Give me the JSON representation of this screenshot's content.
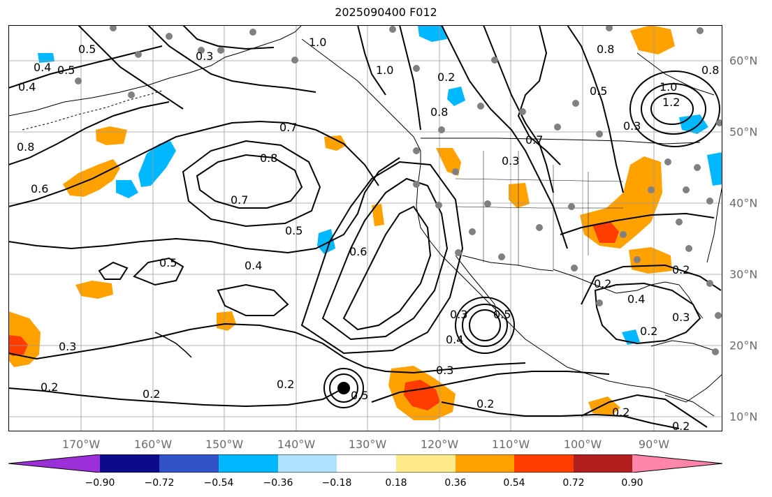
{
  "title": "2025090400 F012",
  "lon_labels": [
    "170°W",
    "160°W",
    "150°W",
    "140°W",
    "130°W",
    "120°W",
    "110°W",
    "100°W",
    "90°W"
  ],
  "lat_labels": [
    "60°N",
    "50°N",
    "40°N",
    "30°N",
    "20°N",
    "10°N"
  ],
  "colorbar": {
    "colors": [
      "#9b30d9",
      "#0b0a88",
      "#3054c8",
      "#00b8ff",
      "#aee2ff",
      "#ffffff",
      "#ffea8a",
      "#ffa200",
      "#ff3d00",
      "#b01e1e",
      "#ff86a8"
    ],
    "tick_labels": [
      "−0.90",
      "−0.72",
      "−0.54",
      "−0.36",
      "−0.18",
      "0.18",
      "0.36",
      "0.54",
      "0.72",
      "0.90"
    ]
  },
  "contour_labels": [
    "0.5",
    "0.4",
    "0.4",
    "0.8",
    "0.6",
    "0.3",
    "0.2",
    "0.2",
    "0.5",
    "0.4",
    "0.5",
    "0.7",
    "0.8",
    "0.6",
    "0.5",
    "0.3",
    "0.2",
    "0.2",
    "0.5",
    "0.3",
    "1.0",
    "1.0",
    "0.2",
    "0.8",
    "0.3",
    "0.7",
    "0.5",
    "0.8",
    "1.0",
    "1.2",
    "0.8",
    "0.3",
    "0.4",
    "0.2",
    "0.2",
    "0.3",
    "0.2",
    "0.4",
    "0.3",
    "0.5",
    "0.2",
    "0.7",
    "0.2"
  ],
  "map": {
    "contour_color": "#000000",
    "land_color": "#000000",
    "grid_color": "#9a9a9a",
    "station_color": "#808080",
    "center_marker_color": "#000000"
  }
}
